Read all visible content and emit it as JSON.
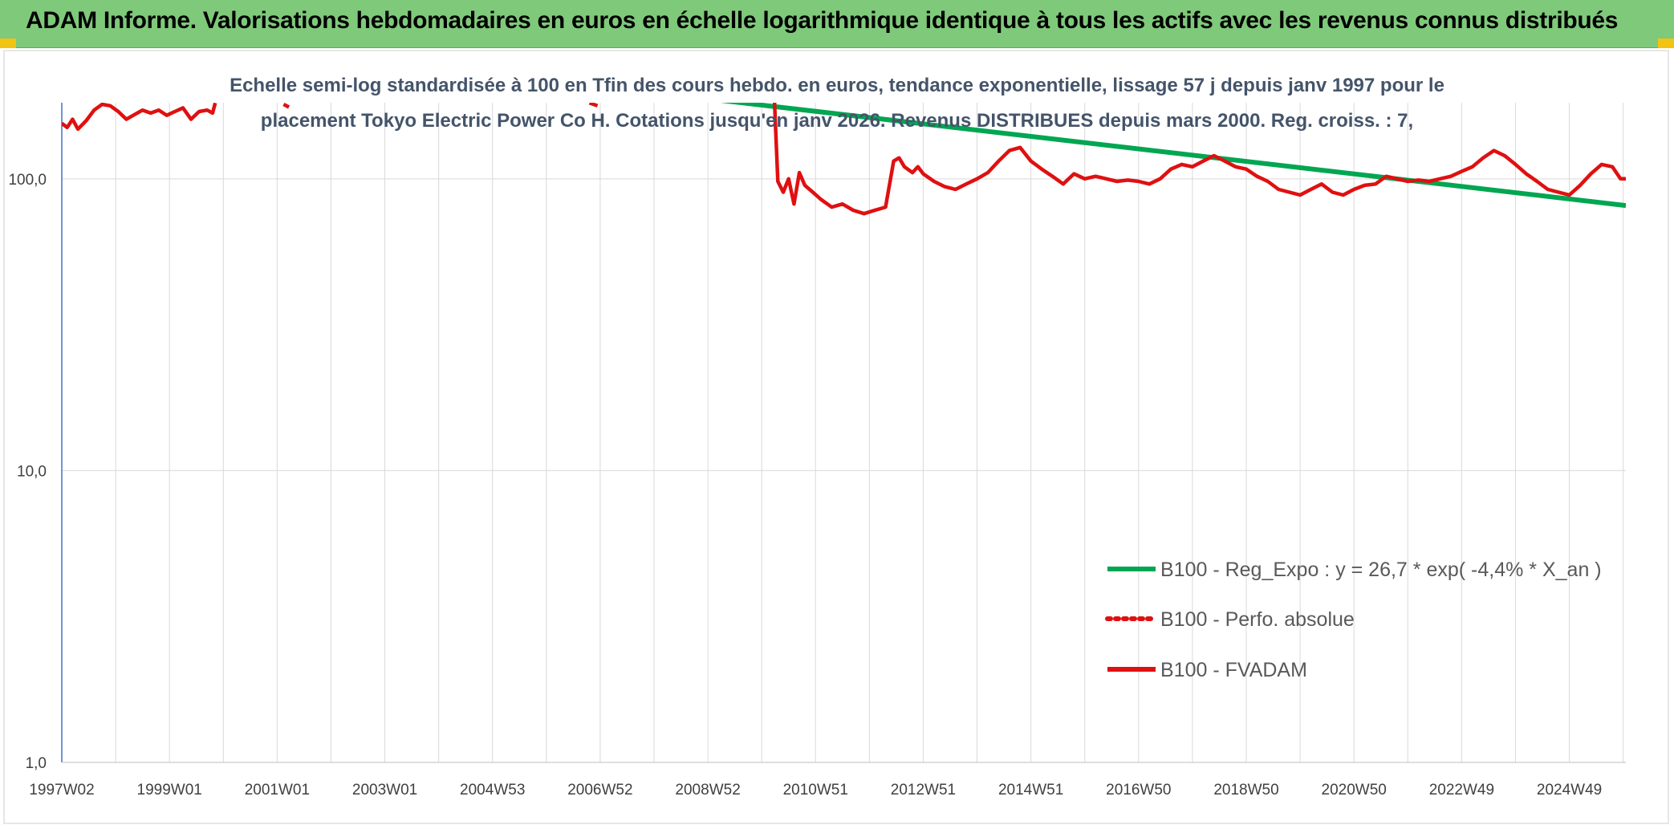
{
  "header": {
    "title": "ADAM Informe. Valorisations hebdomadaires en euros en échelle logarithmique identique à tous les actifs avec les revenus connus distribués"
  },
  "colors": {
    "header_bg": "#7fc97a",
    "accent": "#f2c311",
    "green_series": "#00a651",
    "red_series": "#e01010",
    "grid": "#d9d9d9"
  },
  "chart_data": {
    "type": "line",
    "title": "Echelle semi-log standardisée à 100 en Tfin des cours hebdo. en euros, tendance exponentielle, lissage 57 j depuis janv 1997 pour le placement Tokyo Electric Power Co H. Cotations jusqu'en janv 2026. Revenus DISTRIBUES depuis mars 2000. Reg. croiss. : 7,",
    "title_lines": [
      "Echelle semi-log standardisée à 100 en Tfin des cours hebdo. en euros, tendance exponentielle, lissage 57 j depuis janv 1997 pour le",
      "placement Tokyo Electric Power Co H. Cotations jusqu'en janv 2026. Revenus DISTRIBUES depuis mars 2000. Reg. croiss. : 7,"
    ],
    "y_scale": "log",
    "ylim": [
      1,
      180
    ],
    "y_ticks": [
      {
        "value": 100,
        "label": "100,0"
      },
      {
        "value": 10,
        "label": "10,0"
      },
      {
        "value": 1,
        "label": "1,0"
      }
    ],
    "xlim": [
      1997.0,
      2026.05
    ],
    "x_ticks": [
      {
        "value": 1997.0,
        "label": "1997W02"
      },
      {
        "value": 1999.0,
        "label": "1999W01"
      },
      {
        "value": 2001.0,
        "label": "2001W01"
      },
      {
        "value": 2003.0,
        "label": "2003W01"
      },
      {
        "value": 2005.0,
        "label": "2004W53"
      },
      {
        "value": 2007.0,
        "label": "2006W52"
      },
      {
        "value": 2009.0,
        "label": "2008W52"
      },
      {
        "value": 2011.0,
        "label": "2010W51"
      },
      {
        "value": 2013.0,
        "label": "2012W51"
      },
      {
        "value": 2015.0,
        "label": "2014W51"
      },
      {
        "value": 2017.0,
        "label": "2016W50"
      },
      {
        "value": 2019.0,
        "label": "2018W50"
      },
      {
        "value": 2021.0,
        "label": "2020W50"
      },
      {
        "value": 2023.0,
        "label": "2022W49"
      },
      {
        "value": 2025.0,
        "label": "2024W49"
      }
    ],
    "grid": true,
    "legend_position": "bottom-right",
    "series": [
      {
        "name": "B100 - Reg_Expo : y = 26,7 * exp( -4,4% *  X_an )",
        "color": "#00a651",
        "style": "solid",
        "x": [
          1997.0,
          2026.05
        ],
        "values": [
          340,
          81
        ]
      },
      {
        "name": "B100 - Perfo. absolue",
        "color": "#e01010",
        "style": "dotted",
        "x": [],
        "values": []
      },
      {
        "name": "B100 - FVADAM",
        "color": "#e01010",
        "style": "solid",
        "segments": [
          {
            "x": [
              1997.0,
              1997.1,
              1997.2,
              1997.3,
              1997.45,
              1997.6,
              1997.75,
              1997.9,
              1998.05,
              1998.2,
              1998.35,
              1998.5,
              1998.65,
              1998.8,
              1998.95,
              1999.1,
              1999.25,
              1999.4,
              1999.55,
              1999.7,
              1999.8,
              1999.85
            ],
            "values": [
              155,
              150,
              160,
              148,
              158,
              172,
              180,
              178,
              170,
              160,
              166,
              172,
              168,
              172,
              165,
              170,
              175,
              160,
              170,
              172,
              168,
              182
            ]
          },
          {
            "x": [
              2001.12,
              2001.22
            ],
            "values": [
              180,
              176
            ]
          },
          {
            "x": [
              2006.8,
              2006.95
            ],
            "values": [
              182,
              178
            ]
          },
          {
            "x": [
              2010.2,
              2010.25,
              2010.3,
              2010.4,
              2010.5,
              2010.6,
              2010.7,
              2010.8,
              2010.95,
              2011.1,
              2011.3,
              2011.5,
              2011.7,
              2011.9,
              2012.1,
              2012.3,
              2012.45,
              2012.55,
              2012.65,
              2012.8,
              2012.9,
              2013.0,
              2013.2,
              2013.4,
              2013.6,
              2013.8,
              2014.0,
              2014.2,
              2014.4,
              2014.6,
              2014.8,
              2015.0,
              2015.2,
              2015.4,
              2015.6,
              2015.8,
              2016.0,
              2016.2,
              2016.4,
              2016.6,
              2016.8,
              2017.0,
              2017.2,
              2017.4,
              2017.6,
              2017.8,
              2018.0,
              2018.2,
              2018.4,
              2018.6,
              2018.8,
              2019.0,
              2019.2,
              2019.4,
              2019.6,
              2019.8,
              2020.0,
              2020.2,
              2020.4,
              2020.6,
              2020.8,
              2021.0,
              2021.2,
              2021.4,
              2021.6,
              2021.8,
              2022.0,
              2022.2,
              2022.4,
              2022.6,
              2022.8,
              2023.0,
              2023.2,
              2023.4,
              2023.6,
              2023.8,
              2024.0,
              2024.2,
              2024.4,
              2024.6,
              2024.8,
              2025.0,
              2025.2,
              2025.4,
              2025.6,
              2025.8,
              2025.95,
              2026.05
            ],
            "values": [
              280,
              160,
              98,
              90,
              100,
              82,
              105,
              95,
              90,
              85,
              80,
              82,
              78,
              76,
              78,
              80,
              115,
              118,
              110,
              105,
              110,
              104,
              98,
              94,
              92,
              96,
              100,
              105,
              115,
              125,
              128,
              115,
              108,
              102,
              96,
              104,
              100,
              102,
              100,
              98,
              99,
              98,
              96,
              100,
              108,
              112,
              110,
              115,
              120,
              115,
              110,
              108,
              102,
              98,
              92,
              90,
              88,
              92,
              96,
              90,
              88,
              92,
              95,
              96,
              102,
              100,
              98,
              99,
              98,
              100,
              102,
              106,
              110,
              118,
              125,
              120,
              112,
              104,
              98,
              92,
              90,
              88,
              95,
              104,
              112,
              110,
              100,
              100
            ]
          }
        ]
      }
    ]
  }
}
